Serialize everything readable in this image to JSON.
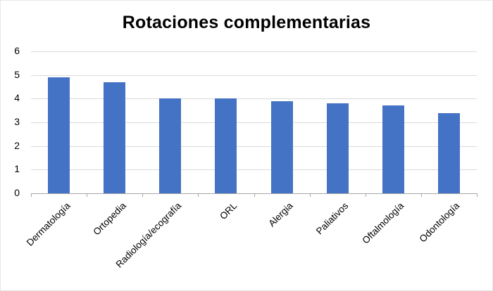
{
  "chart_data": {
    "type": "bar",
    "title": "Rotaciones complementarias",
    "xlabel": "",
    "ylabel": "",
    "categories": [
      "Dermatología",
      "Ortopedia",
      "Radiología/ecografía",
      "ORL",
      "Alergia",
      "Paliativos",
      "Oftalmología",
      "Odontología"
    ],
    "values": [
      4.9,
      4.7,
      4.0,
      4.0,
      3.9,
      3.8,
      3.7,
      3.4
    ],
    "ylim": [
      0,
      6
    ],
    "yticks": [
      "0",
      "1",
      "2",
      "3",
      "4",
      "5",
      "6"
    ],
    "grid": true,
    "legend": "none",
    "bar_color": "#4472c4"
  }
}
